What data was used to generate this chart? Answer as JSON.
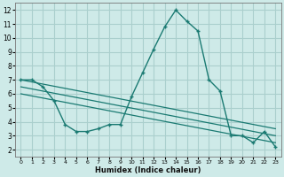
{
  "xlabel": "Humidex (Indice chaleur)",
  "background_color": "#ceeae8",
  "grid_color": "#aacfcd",
  "line_color": "#1a7a72",
  "x_humidex": [
    0,
    1,
    2,
    3,
    4,
    5,
    6,
    7,
    8,
    9,
    10,
    11,
    12,
    13,
    14,
    15,
    16,
    17,
    18,
    19,
    20,
    21,
    22,
    23
  ],
  "y_main": [
    7.0,
    7.0,
    6.5,
    5.5,
    3.8,
    3.3,
    3.3,
    3.5,
    3.8,
    3.8,
    5.8,
    7.5,
    9.2,
    10.8,
    12.0,
    11.2,
    10.5,
    7.0,
    6.2,
    3.0,
    3.0,
    2.5,
    3.3,
    2.2
  ],
  "trend1_x": [
    0,
    23
  ],
  "trend1_y": [
    7.0,
    3.5
  ],
  "trend2_x": [
    0,
    23
  ],
  "trend2_y": [
    6.5,
    3.0
  ],
  "trend3_x": [
    0,
    23
  ],
  "trend3_y": [
    6.0,
    2.5
  ],
  "xlim": [
    -0.5,
    23.5
  ],
  "ylim": [
    1.5,
    12.5
  ],
  "yticks": [
    2,
    3,
    4,
    5,
    6,
    7,
    8,
    9,
    10,
    11,
    12
  ],
  "xticks": [
    0,
    1,
    2,
    3,
    4,
    5,
    6,
    7,
    8,
    9,
    10,
    11,
    12,
    13,
    14,
    15,
    16,
    17,
    18,
    19,
    20,
    21,
    22,
    23
  ]
}
